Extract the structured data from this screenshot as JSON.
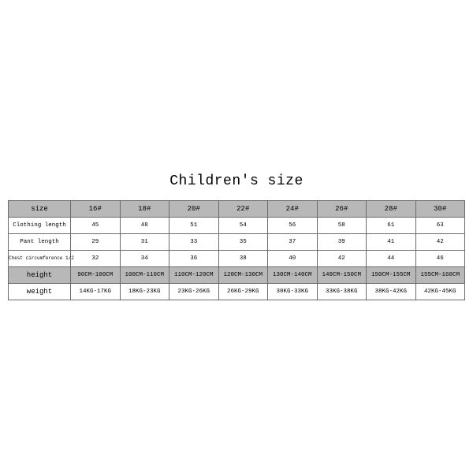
{
  "title": "Children's size",
  "table": {
    "header_label": "size",
    "sizes": [
      "16#",
      "18#",
      "20#",
      "22#",
      "24#",
      "26#",
      "28#",
      "30#"
    ],
    "rows": [
      {
        "label": "Clothing length",
        "values": [
          "45",
          "48",
          "51",
          "54",
          "56",
          "58",
          "61",
          "63"
        ]
      },
      {
        "label": "Pant length",
        "values": [
          "29",
          "31",
          "33",
          "35",
          "37",
          "39",
          "41",
          "42"
        ]
      },
      {
        "label": "Chest circumference 1/2",
        "values": [
          "32",
          "34",
          "36",
          "38",
          "40",
          "42",
          "44",
          "46"
        ]
      },
      {
        "label": "height",
        "values": [
          "90CM-100CM",
          "100CM-110CM",
          "110CM-120CM",
          "120CM-130CM",
          "130CM-140CM",
          "140CM-150CM",
          "150CM-155CM",
          "155CM-160CM"
        ]
      },
      {
        "label": "weight",
        "values": [
          "14KG-17KG",
          "18KG-23KG",
          "23KG-26KG",
          "26KG-29KG",
          "30KG-33KG",
          "33KG-38KG",
          "38KG-42KG",
          "42KG-45KG"
        ]
      }
    ]
  },
  "style": {
    "background": "#ffffff",
    "header_bg": "#b8b8b8",
    "border_color": "#6a6a6a",
    "text_color": "#000000",
    "title_fontsize": 18,
    "cell_fontsize": 7.5,
    "font_family": "Courier New"
  }
}
